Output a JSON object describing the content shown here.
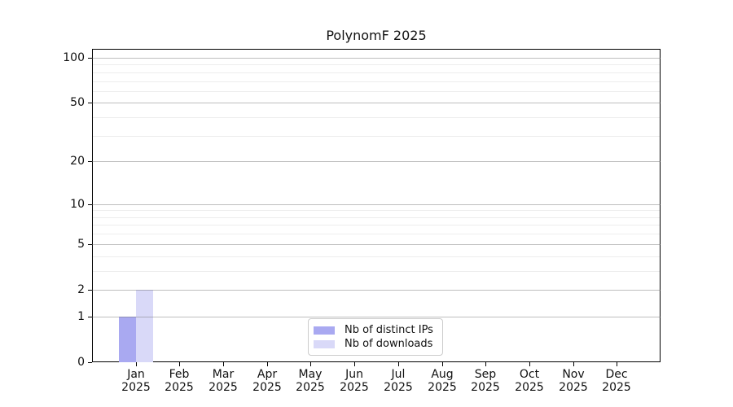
{
  "title": "PolynomF 2025",
  "chart_data": {
    "type": "bar",
    "title": "PolynomF 2025",
    "categories": [
      "Jan 2025",
      "Feb 2025",
      "Mar 2025",
      "Apr 2025",
      "May 2025",
      "Jun 2025",
      "Jul 2025",
      "Aug 2025",
      "Sep 2025",
      "Oct 2025",
      "Nov 2025",
      "Dec 2025"
    ],
    "month_labels": [
      "Jan",
      "Feb",
      "Mar",
      "Apr",
      "May",
      "Jun",
      "Jul",
      "Aug",
      "Sep",
      "Oct",
      "Nov",
      "Dec"
    ],
    "year_label": "2025",
    "series": [
      {
        "name": "Nb of distinct IPs",
        "color": "#a9a9f1",
        "values": [
          1,
          0,
          0,
          0,
          0,
          0,
          0,
          0,
          0,
          0,
          0,
          0
        ]
      },
      {
        "name": "Nb of downloads",
        "color": "#d9d9f8",
        "values": [
          2,
          0,
          0,
          0,
          0,
          0,
          0,
          0,
          0,
          0,
          0,
          0
        ]
      }
    ],
    "y_scale": "log1p",
    "ylim": [
      0,
      114.6
    ],
    "y_major_ticks": [
      0,
      1,
      2,
      5,
      10,
      20,
      50,
      100
    ],
    "y_minor_ticks": [
      3,
      4,
      6,
      7,
      8,
      9,
      30,
      40,
      60,
      70,
      80,
      90
    ],
    "grid": true,
    "legend_position": "lower center",
    "xlabel": "",
    "ylabel": ""
  },
  "legend": {
    "items": [
      {
        "label": "Nb of distinct IPs",
        "color": "#a9a9f1"
      },
      {
        "label": "Nb of downloads",
        "color": "#d9d9f8"
      }
    ]
  },
  "colors": {
    "background": "#ffffff",
    "spine": "#000000",
    "grid_major": "#c6c6c6",
    "grid_minor": "#ececec",
    "legend_border": "#cccccc",
    "text": "#111111"
  }
}
